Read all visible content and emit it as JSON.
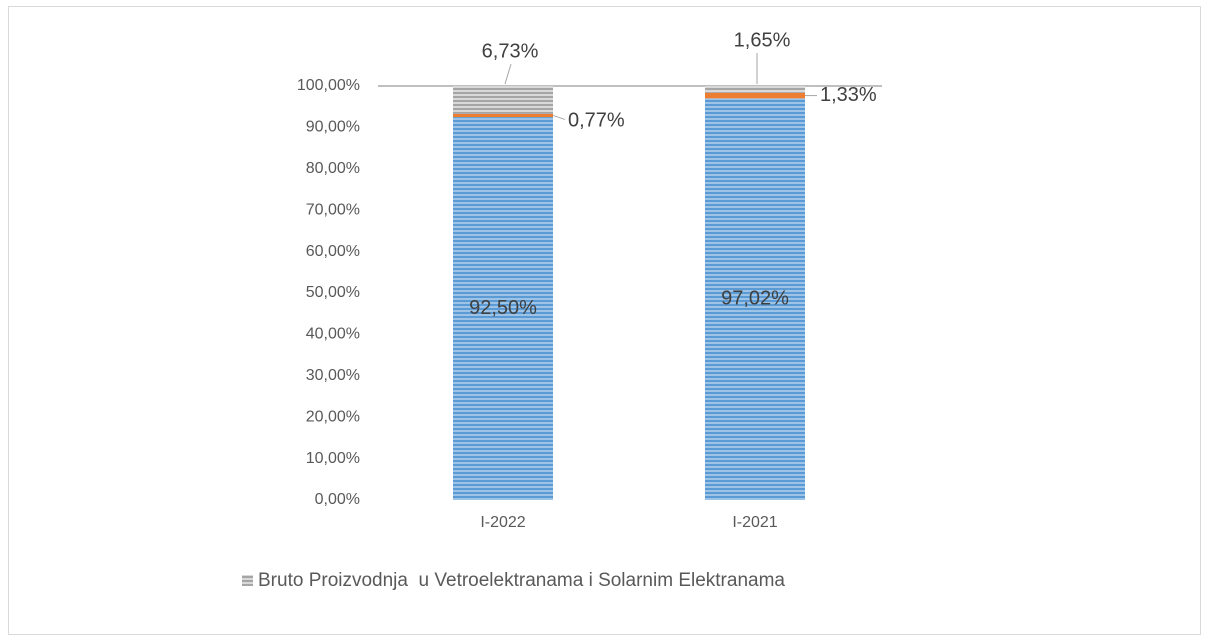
{
  "chart_data": {
    "type": "stacked_bar",
    "categories": [
      "I-2022",
      "I-2021"
    ],
    "series": [
      {
        "color": "#5b9bd5",
        "values": [
          92.5,
          97.02
        ],
        "value_labels": [
          "92,50%",
          "97,02%"
        ]
      },
      {
        "color": "#ed7d31",
        "values": [
          0.77,
          1.33
        ],
        "value_labels": [
          "0,77%",
          "1,33%"
        ]
      },
      {
        "name": "Bruto Proizvodnja  u Vetroelektranama i Solarnim Elektranama",
        "color": "#a5a5a5",
        "values": [
          6.73,
          1.65
        ],
        "value_labels": [
          "6,73%",
          "1,65%"
        ]
      }
    ],
    "ylim": [
      0,
      100
    ],
    "yticks": [
      {
        "value": 0,
        "label": "0,00%"
      },
      {
        "value": 10,
        "label": "10,00%"
      },
      {
        "value": 20,
        "label": "20,00%"
      },
      {
        "value": 30,
        "label": "30,00%"
      },
      {
        "value": 40,
        "label": "40,00%"
      },
      {
        "value": 50,
        "label": "50,00%"
      },
      {
        "value": 60,
        "label": "60,00%"
      },
      {
        "value": 70,
        "label": "70,00%"
      },
      {
        "value": 80,
        "label": "80,00%"
      },
      {
        "value": 90,
        "label": "90,00%"
      },
      {
        "value": 100,
        "label": "100,00%"
      }
    ],
    "legend": "bottom"
  }
}
